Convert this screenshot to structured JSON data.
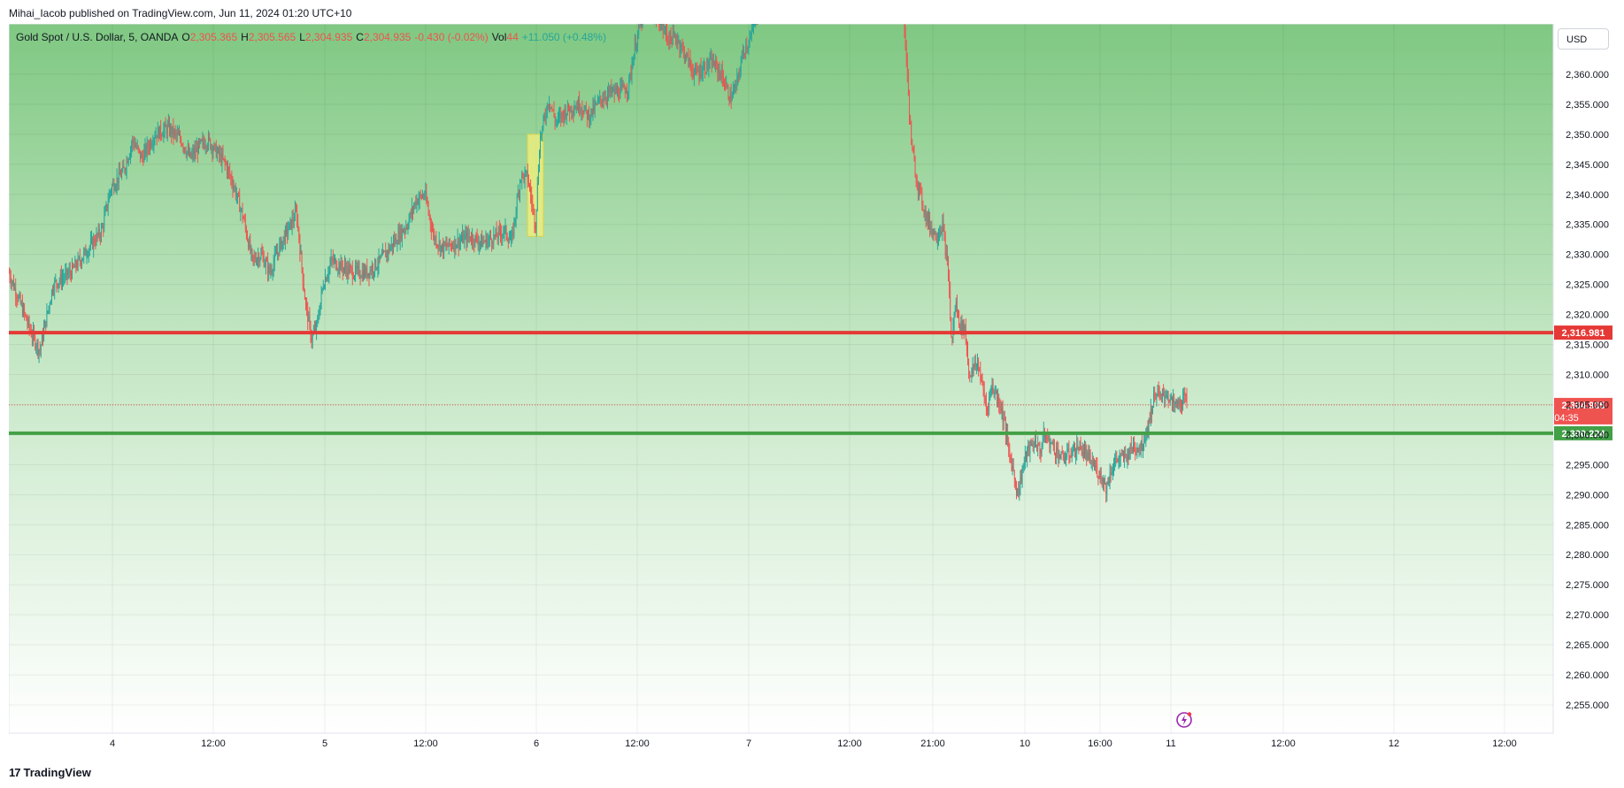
{
  "header": {
    "published_text": "Mihai_Iacob published on TradingView.com, Jun 11, 2024 01:20 UTC+10"
  },
  "legend": {
    "symbol": "Gold Spot / U.S. Dollar, 5, OANDA",
    "open_label": "O",
    "open": "2,305.365",
    "high_label": "H",
    "high": "2,305.565",
    "low_label": "L",
    "low": "2,304.935",
    "close_label": "C",
    "close": "2,304.935",
    "change": "-0.430 (-0.02%)",
    "vol_label": "Vol",
    "vol": "44",
    "vol_change": "+11.050 (+0.48%)"
  },
  "currency_button": "USD",
  "footer": {
    "brand": "TradingView",
    "brand_mark": "17"
  },
  "colors": {
    "up": "#26a69a",
    "down": "#ef5350",
    "resistance": "#e53935",
    "support": "#43a047",
    "bg_top": "#7fc882",
    "highlight": "#f5f07a"
  },
  "chart_data": {
    "type": "candlestick",
    "symbol": "XAUUSD",
    "timeframe": "5",
    "ylim": [
      2252.5,
      2367.5
    ],
    "y_ticks": [
      "2,255.000",
      "2,260.000",
      "2,265.000",
      "2,270.000",
      "2,275.000",
      "2,280.000",
      "2,285.000",
      "2,290.000",
      "2,295.000",
      "2,300.000",
      "2,305.000",
      "2,310.000",
      "2,315.000",
      "2,320.000",
      "2,325.000",
      "2,330.000",
      "2,335.000",
      "2,340.000",
      "2,345.000",
      "2,350.000",
      "2,355.000",
      "2,360.000"
    ],
    "y_tick_values": [
      2255,
      2260,
      2265,
      2270,
      2275,
      2280,
      2285,
      2290,
      2295,
      2300,
      2305,
      2310,
      2315,
      2320,
      2325,
      2330,
      2335,
      2340,
      2345,
      2350,
      2355,
      2360
    ],
    "x_ticks": [
      {
        "label": "4",
        "t": 127
      },
      {
        "label": "12:00",
        "t": 241
      },
      {
        "label": "5",
        "t": 367
      },
      {
        "label": "12:00",
        "t": 481
      },
      {
        "label": "6",
        "t": 606
      },
      {
        "label": "12:00",
        "t": 720
      },
      {
        "label": "7",
        "t": 846
      },
      {
        "label": "12:00",
        "t": 960
      },
      {
        "label": "21:00",
        "t": 1054
      },
      {
        "label": "10",
        "t": 1158
      },
      {
        "label": "16:00",
        "t": 1243
      },
      {
        "label": "11",
        "t": 1323
      },
      {
        "label": "12:00",
        "t": 1450
      },
      {
        "label": "12",
        "t": 1575
      },
      {
        "label": "12:00",
        "t": 1700
      }
    ],
    "price_path": [
      [
        10,
        2327
      ],
      [
        35,
        2317
      ],
      [
        45,
        2314
      ],
      [
        60,
        2325
      ],
      [
        80,
        2327
      ],
      [
        100,
        2331
      ],
      [
        115,
        2334
      ],
      [
        125,
        2341
      ],
      [
        140,
        2344
      ],
      [
        150,
        2349
      ],
      [
        160,
        2346
      ],
      [
        175,
        2350
      ],
      [
        190,
        2351
      ],
      [
        205,
        2349
      ],
      [
        215,
        2346
      ],
      [
        225,
        2348
      ],
      [
        235,
        2349
      ],
      [
        245,
        2347
      ],
      [
        255,
        2345
      ],
      [
        265,
        2341
      ],
      [
        275,
        2336
      ],
      [
        285,
        2329
      ],
      [
        295,
        2330
      ],
      [
        305,
        2327
      ],
      [
        315,
        2331
      ],
      [
        325,
        2334
      ],
      [
        335,
        2337
      ],
      [
        345,
        2322
      ],
      [
        352,
        2316
      ],
      [
        358,
        2318
      ],
      [
        365,
        2325
      ],
      [
        375,
        2329
      ],
      [
        385,
        2328
      ],
      [
        400,
        2327
      ],
      [
        415,
        2327
      ],
      [
        430,
        2329
      ],
      [
        445,
        2332
      ],
      [
        460,
        2335
      ],
      [
        470,
        2339
      ],
      [
        480,
        2340
      ],
      [
        490,
        2333
      ],
      [
        500,
        2331
      ],
      [
        515,
        2332
      ],
      [
        530,
        2333
      ],
      [
        545,
        2332
      ],
      [
        560,
        2333
      ],
      [
        570,
        2334
      ],
      [
        578,
        2332
      ],
      [
        588,
        2343
      ],
      [
        596,
        2343
      ],
      [
        605,
        2335
      ],
      [
        610,
        2349
      ],
      [
        620,
        2356
      ],
      [
        628,
        2352
      ],
      [
        640,
        2354
      ],
      [
        655,
        2355
      ],
      [
        665,
        2353
      ],
      [
        680,
        2356
      ],
      [
        690,
        2357
      ],
      [
        700,
        2357
      ],
      [
        710,
        2358
      ],
      [
        718,
        2365
      ],
      [
        725,
        2369
      ],
      [
        735,
        2371
      ],
      [
        745,
        2369
      ],
      [
        755,
        2366
      ],
      [
        765,
        2366
      ],
      [
        775,
        2363
      ],
      [
        785,
        2360
      ],
      [
        795,
        2361
      ],
      [
        805,
        2362
      ],
      [
        815,
        2360
      ],
      [
        825,
        2356
      ],
      [
        832,
        2358
      ],
      [
        840,
        2364
      ],
      [
        848,
        2366
      ],
      [
        855,
        2370
      ],
      [
        860,
        2372
      ],
      [
        1020,
        2372
      ],
      [
        1024,
        2363
      ],
      [
        1027,
        2355
      ],
      [
        1030,
        2348
      ],
      [
        1035,
        2343
      ],
      [
        1040,
        2340
      ],
      [
        1045,
        2337
      ],
      [
        1050,
        2335
      ],
      [
        1058,
        2333
      ],
      [
        1065,
        2335
      ],
      [
        1072,
        2326
      ],
      [
        1075,
        2315
      ],
      [
        1080,
        2322
      ],
      [
        1085,
        2318
      ],
      [
        1090,
        2318
      ],
      [
        1095,
        2310
      ],
      [
        1100,
        2311
      ],
      [
        1105,
        2312
      ],
      [
        1110,
        2308
      ],
      [
        1115,
        2304
      ],
      [
        1120,
        2308
      ],
      [
        1125,
        2307
      ],
      [
        1130,
        2305
      ],
      [
        1135,
        2302
      ],
      [
        1140,
        2297
      ],
      [
        1145,
        2294
      ],
      [
        1150,
        2290
      ],
      [
        1155,
        2294
      ],
      [
        1160,
        2297
      ],
      [
        1165,
        2298
      ],
      [
        1170,
        2299
      ],
      [
        1175,
        2297
      ],
      [
        1180,
        2300
      ],
      [
        1190,
        2298
      ],
      [
        1200,
        2296
      ],
      [
        1210,
        2297
      ],
      [
        1220,
        2298
      ],
      [
        1230,
        2296
      ],
      [
        1240,
        2294
      ],
      [
        1245,
        2293
      ],
      [
        1250,
        2291
      ],
      [
        1255,
        2294
      ],
      [
        1262,
        2296
      ],
      [
        1270,
        2296
      ],
      [
        1280,
        2298
      ],
      [
        1290,
        2298
      ],
      [
        1298,
        2302
      ],
      [
        1305,
        2307
      ],
      [
        1312,
        2306
      ],
      [
        1318,
        2307
      ],
      [
        1325,
        2305
      ],
      [
        1332,
        2305
      ],
      [
        1338,
        2306
      ],
      [
        1341,
        2304.935
      ]
    ],
    "x_range": [
      10,
      1495
    ],
    "horizontal_levels": [
      {
        "name": "resistance",
        "value": 2316.981,
        "label": "2,316.981"
      },
      {
        "name": "support",
        "value": 2300.224,
        "label": "2,300.224"
      }
    ],
    "current_price": {
      "value": 2304.935,
      "label": "2,304.935",
      "countdown": "04:35"
    },
    "highlight_box": {
      "x_from": 596,
      "x_to": 614,
      "y_from": 2333,
      "y_to": 2350
    }
  }
}
